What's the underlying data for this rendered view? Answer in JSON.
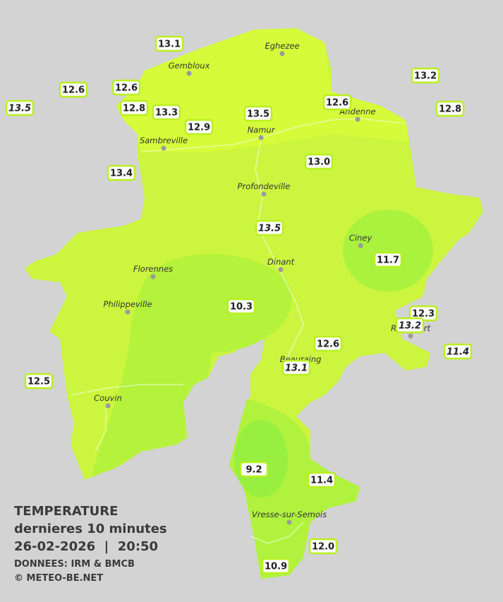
{
  "title": {
    "line1": "TEMPERATURE",
    "line2": "dernieres 10 minutes",
    "line3": "26-02-2026  |  20:50",
    "source": "DONNEES: IRM & BMCB",
    "credit": "© METEO-BE.NET"
  },
  "cities": [
    "Eghezee",
    "Gembloux",
    "Andenne",
    "Namur",
    "Sambreville",
    "Profondeville",
    "Ciney",
    "Dinant",
    "Florennes",
    "Philippeville",
    "Rochefort",
    "Beauraing",
    "Couvin",
    "Vresse-sur-Semois"
  ],
  "stations": [
    {
      "label": "13.1",
      "italic": false
    },
    {
      "label": "12.6",
      "italic": false
    },
    {
      "label": "12.6",
      "italic": false
    },
    {
      "label": "13.5",
      "italic": true
    },
    {
      "label": "12.8",
      "italic": false
    },
    {
      "label": "13.3",
      "italic": false
    },
    {
      "label": "12.9",
      "italic": false
    },
    {
      "label": "13.5",
      "italic": false
    },
    {
      "label": "12.6",
      "italic": false
    },
    {
      "label": "13.2",
      "italic": false
    },
    {
      "label": "12.8",
      "italic": false
    },
    {
      "label": "13.4",
      "italic": false
    },
    {
      "label": "13.0",
      "italic": false
    },
    {
      "label": "13.5",
      "italic": true
    },
    {
      "label": "11.7",
      "italic": false
    },
    {
      "label": "10.3",
      "italic": false
    },
    {
      "label": "12.3",
      "italic": false
    },
    {
      "label": "13.2",
      "italic": true
    },
    {
      "label": "12.6",
      "italic": false
    },
    {
      "label": "11.4",
      "italic": true
    },
    {
      "label": "13.1",
      "italic": true
    },
    {
      "label": "12.5",
      "italic": false
    },
    {
      "label": "9.2",
      "italic": false
    },
    {
      "label": "11.4",
      "italic": false
    },
    {
      "label": "12.0",
      "italic": false
    },
    {
      "label": "10.9",
      "italic": false
    }
  ]
}
